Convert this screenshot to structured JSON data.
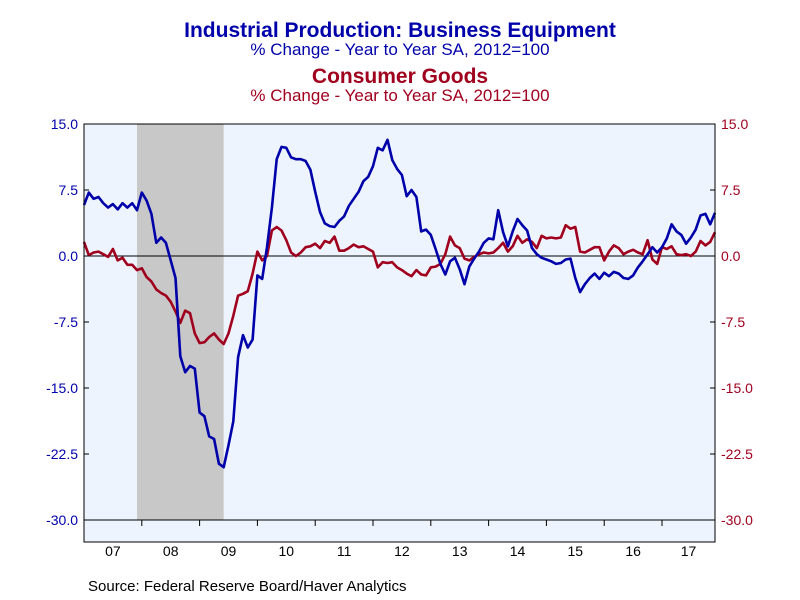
{
  "colors": {
    "blue": "#0000aa",
    "red": "#a0001e",
    "plot_bg": "#eef4fd",
    "recession": "#c8c8c8"
  },
  "titles": {
    "title1": "Industrial Production: Business Equipment",
    "subtitle1": "% Change - Year to Year    SA, 2012=100",
    "title2": "Consumer Goods",
    "subtitle2": "% Change - Year to Year    SA, 2012=100"
  },
  "source": "Source:  Federal Reserve Board/Haver Analytics",
  "chart_data": {
    "type": "line",
    "x_range": [
      2007.0,
      2017.9167
    ],
    "ylim": [
      -30,
      15
    ],
    "y_ticks": [
      "15.0",
      "7.5",
      "0.0",
      "-7.5",
      "-15.0",
      "-22.5",
      "-30.0"
    ],
    "y_tick_values": [
      15,
      7.5,
      0,
      -7.5,
      -15,
      -22.5,
      -30
    ],
    "x_tick_labels": [
      "07",
      "08",
      "09",
      "10",
      "11",
      "12",
      "13",
      "14",
      "15",
      "16",
      "17"
    ],
    "recession_shading": [
      2007.9167,
      2009.4167
    ],
    "grid": false,
    "zero_line": true,
    "series": [
      {
        "name": "Industrial Production: Business Equipment",
        "axis": "left",
        "start": 2007.0,
        "values": [
          5.8,
          7.2,
          6.5,
          6.7,
          6.0,
          5.5,
          5.9,
          5.3,
          6.0,
          5.5,
          6.0,
          5.2,
          7.2,
          6.3,
          4.8,
          1.5,
          2.1,
          1.5,
          -0.5,
          -2.5,
          -11.4,
          -13.2,
          -12.5,
          -12.8,
          -17.8,
          -18.2,
          -20.5,
          -20.8,
          -23.6,
          -24.0,
          -21.5,
          -18.8,
          -11.5,
          -9.0,
          -10.4,
          -9.5,
          -2.2,
          -2.6,
          1.0,
          5.5,
          11.0,
          12.4,
          12.3,
          11.2,
          11.0,
          11.0,
          10.8,
          9.8,
          7.3,
          5.0,
          3.7,
          3.4,
          3.3,
          4.0,
          4.5,
          5.7,
          6.5,
          7.3,
          8.5,
          9.0,
          10.2,
          12.3,
          12.0,
          13.2,
          10.9,
          9.9,
          9.2,
          6.8,
          7.5,
          6.7,
          2.8,
          3.0,
          2.4,
          0.8,
          -0.9,
          -2.1,
          -0.6,
          -0.2,
          -1.5,
          -3.2,
          -1.2,
          -0.3,
          0.5,
          1.5,
          2.0,
          1.9,
          5.2,
          2.7,
          1.1,
          2.8,
          4.2,
          3.5,
          2.9,
          0.9,
          0.2,
          -0.2,
          -0.4,
          -0.6,
          -0.9,
          -0.8,
          -0.4,
          -0.3,
          -2.5,
          -4.1,
          -3.2,
          -2.5,
          -2.0,
          -2.6,
          -1.9,
          -2.3,
          -1.8,
          -2.0,
          -2.5,
          -2.6,
          -2.2,
          -1.3,
          -0.6,
          0.2,
          1.0,
          0.4,
          1.0,
          2.0,
          3.6,
          2.8,
          2.4,
          1.4,
          2.1,
          3.0,
          4.6,
          4.8,
          3.6,
          4.9
        ]
      },
      {
        "name": "Consumer Goods",
        "axis": "right",
        "start": 2007.0,
        "values": [
          1.6,
          0.1,
          0.4,
          0.5,
          0.2,
          -0.1,
          0.8,
          -0.5,
          -0.2,
          -1.0,
          -1.0,
          -1.6,
          -1.4,
          -2.4,
          -2.9,
          -3.8,
          -4.2,
          -4.5,
          -5.2,
          -6.3,
          -7.6,
          -6.2,
          -6.5,
          -8.8,
          -9.9,
          -9.8,
          -9.2,
          -8.8,
          -9.5,
          -10.0,
          -8.8,
          -6.8,
          -4.5,
          -4.3,
          -4.0,
          -2.0,
          0.5,
          -0.5,
          0.0,
          2.9,
          3.3,
          2.9,
          1.8,
          0.4,
          0.0,
          0.4,
          1.0,
          1.1,
          1.4,
          0.9,
          1.7,
          1.5,
          2.2,
          0.6,
          0.6,
          0.9,
          1.3,
          1.0,
          1.1,
          0.8,
          0.5,
          -1.3,
          -0.7,
          -0.8,
          -0.7,
          -1.3,
          -1.6,
          -2.0,
          -2.3,
          -1.6,
          -2.1,
          -2.2,
          -1.3,
          -1.2,
          -0.9,
          0.2,
          2.2,
          1.2,
          0.9,
          -0.3,
          -0.5,
          -0.1,
          0.2,
          0.4,
          0.3,
          0.4,
          0.9,
          1.5,
          0.5,
          1.1,
          2.3,
          1.5,
          1.9,
          1.6,
          0.9,
          2.3,
          2.0,
          2.1,
          2.0,
          2.1,
          3.5,
          3.1,
          3.3,
          0.5,
          0.4,
          0.7,
          1.0,
          1.0,
          -0.5,
          0.5,
          1.2,
          0.9,
          0.2,
          0.5,
          0.7,
          0.4,
          0.2,
          1.8,
          -0.4,
          -0.9,
          1.0,
          0.8,
          1.1,
          0.2,
          0.1,
          0.2,
          0.0,
          0.5,
          1.7,
          1.2,
          1.6,
          2.7
        ]
      }
    ]
  }
}
